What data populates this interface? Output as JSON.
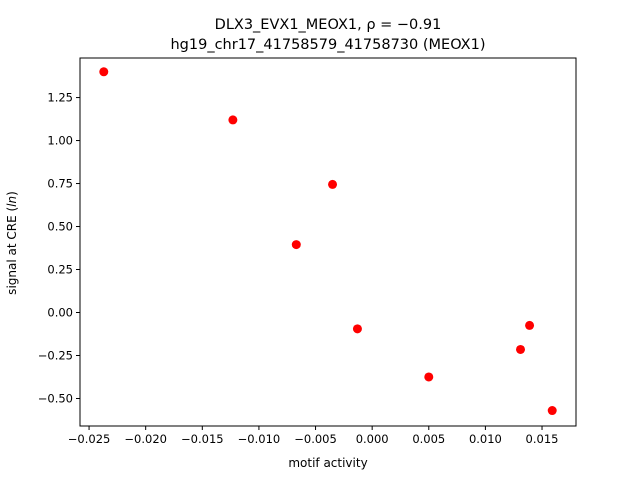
{
  "chart_data": {
    "type": "scatter",
    "title_line1": "DLX3_EVX1_MEOX1, ρ = −0.91",
    "title_line2": "hg19_chr17_41758579_41758730 (MEOX1)",
    "xlabel": "motif activity",
    "ylabel": "signal at CRE (ln)",
    "xlim": [
      -0.0258,
      0.018
    ],
    "ylim": [
      -0.66,
      1.48
    ],
    "xticks": [
      -0.025,
      -0.02,
      -0.015,
      -0.01,
      -0.005,
      0.0,
      0.005,
      0.01,
      0.015
    ],
    "xtick_labels": [
      "−0.025",
      "−0.020",
      "−0.015",
      "−0.010",
      "−0.005",
      "0.000",
      "0.005",
      "0.010",
      "0.015"
    ],
    "yticks": [
      -0.5,
      -0.25,
      0.0,
      0.25,
      0.5,
      0.75,
      1.0,
      1.25
    ],
    "ytick_labels": [
      "−0.50",
      "−0.25",
      "0.00",
      "0.25",
      "0.50",
      "0.75",
      "1.00",
      "1.25"
    ],
    "grid": false,
    "marker_color": "#ff0000",
    "points": [
      {
        "x": -0.0237,
        "y": 1.4
      },
      {
        "x": -0.0123,
        "y": 1.12
      },
      {
        "x": -0.0035,
        "y": 0.745
      },
      {
        "x": -0.0067,
        "y": 0.395
      },
      {
        "x": -0.0013,
        "y": -0.095
      },
      {
        "x": 0.005,
        "y": -0.375
      },
      {
        "x": 0.0139,
        "y": -0.075
      },
      {
        "x": 0.0131,
        "y": -0.215
      },
      {
        "x": 0.0159,
        "y": -0.57
      }
    ]
  }
}
